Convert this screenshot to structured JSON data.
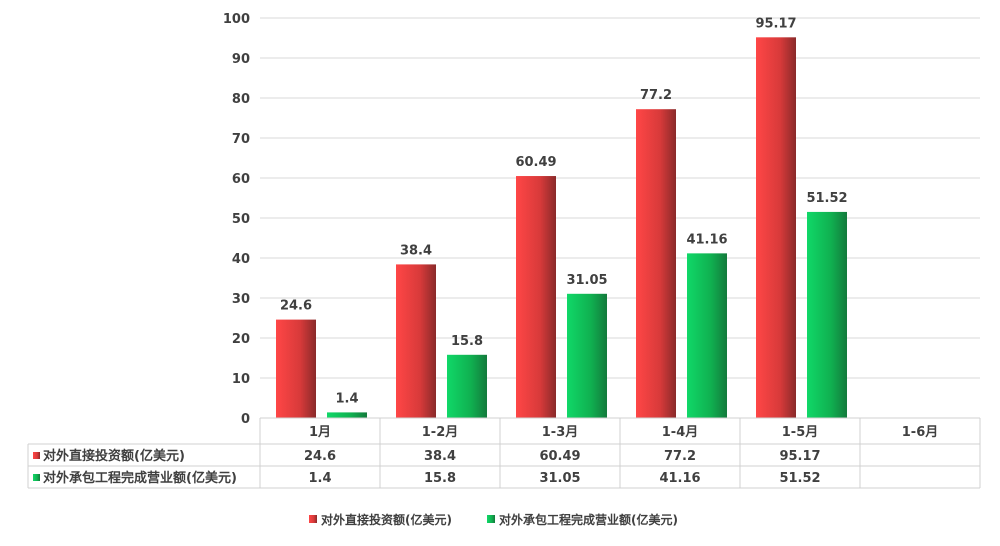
{
  "chart_data": {
    "type": "bar",
    "categories": [
      "1月",
      "1-2月",
      "1-3月",
      "1-4月",
      "1-5月",
      "1-6月"
    ],
    "series": [
      {
        "name": "对外直接投资额(亿美元)",
        "values": [
          24.6,
          38.4,
          60.49,
          77.2,
          95.17,
          null
        ],
        "labels": [
          "24.6",
          "38.4",
          "60.49",
          "77.2",
          "95.17",
          ""
        ],
        "color": "#e83a3a"
      },
      {
        "name": "对外承包工程完成营业额(亿美元)",
        "values": [
          1.4,
          15.8,
          31.05,
          41.16,
          51.52,
          null
        ],
        "labels": [
          "1.4",
          "15.8",
          "31.05",
          "41.16",
          "51.52",
          ""
        ],
        "color": "#12b955"
      }
    ],
    "ylim": [
      0,
      100
    ],
    "yticks": [
      "0",
      "10",
      "20",
      "30",
      "40",
      "50",
      "60",
      "70",
      "80",
      "90",
      "100"
    ],
    "grid": true,
    "legend": "bottom",
    "data_table": true
  }
}
